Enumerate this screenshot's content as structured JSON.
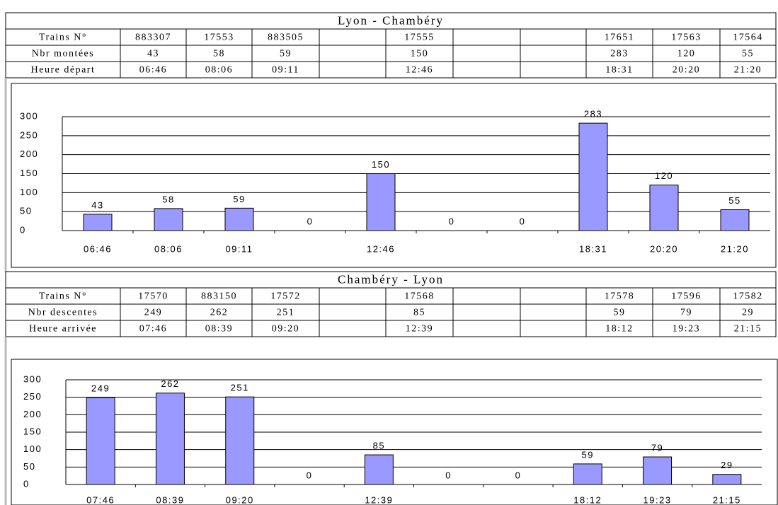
{
  "tables": [
    {
      "title": "Lyon - Chambéry",
      "rows": [
        [
          "Trains N°",
          883307,
          17553,
          883505,
          null,
          17555,
          null,
          null,
          17651,
          17563,
          17564
        ],
        [
          "Nbr montées",
          43,
          58,
          59,
          null,
          150,
          null,
          null,
          283,
          120,
          55
        ],
        [
          "Heure départ",
          "06:46",
          "08:06",
          "09:11",
          null,
          "12:46",
          null,
          null,
          "18:31",
          "20:20",
          "21:20"
        ]
      ]
    },
    {
      "title": "Chambéry - Lyon",
      "rows": [
        [
          "Trains N°",
          17570,
          883150,
          17572,
          null,
          17568,
          null,
          null,
          17578,
          17596,
          17582
        ],
        [
          "Nbr descentes",
          249,
          262,
          251,
          null,
          85,
          null,
          null,
          59,
          79,
          29
        ],
        [
          "Heure arrivée",
          "07:46",
          "08:39",
          "09:20",
          null,
          "12:39",
          null,
          null,
          "18:12",
          "19:23",
          "21:15"
        ]
      ]
    }
  ],
  "chart_data": [
    {
      "type": "bar",
      "color": "#9999ff",
      "categories": [
        "06:46",
        "08:06",
        "09:11",
        null,
        "12:46",
        null,
        null,
        "18:31",
        "20:20",
        "21:20"
      ],
      "values": [
        43,
        58,
        59,
        0,
        150,
        0,
        0,
        283,
        120,
        55
      ],
      "ylim": [
        0,
        300
      ],
      "yticks": [
        0,
        50,
        100,
        150,
        200,
        250,
        300
      ],
      "grid": true
    },
    {
      "type": "bar",
      "color": "#9999ff",
      "categories": [
        "07:46",
        "08:39",
        "09:20",
        null,
        "12:39",
        null,
        null,
        "18:12",
        "19:23",
        "21:15"
      ],
      "values": [
        249,
        262,
        251,
        0,
        85,
        0,
        0,
        59,
        79,
        29
      ],
      "ylim": [
        0,
        300
      ],
      "yticks": [
        0,
        50,
        100,
        150,
        200,
        250,
        300
      ],
      "grid": true
    }
  ]
}
